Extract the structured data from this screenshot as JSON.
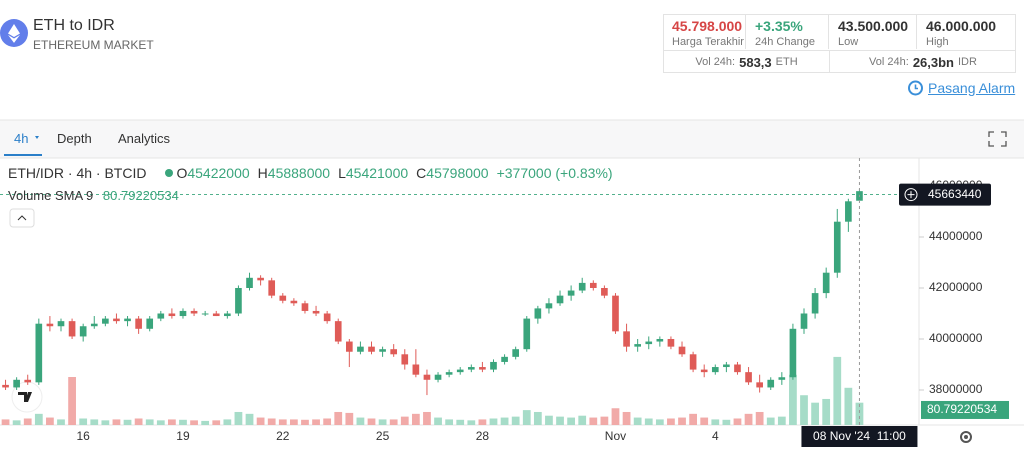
{
  "header": {
    "title": "ETH to IDR",
    "subtitle": "ETHEREUM MARKET"
  },
  "stats": [
    {
      "value": "45.798.000",
      "label": "Harga Terakhir"
    },
    {
      "value": "+3.35%",
      "label": "24h Change"
    },
    {
      "value": "43.500.000",
      "label": "Low"
    },
    {
      "value": "46.000.000",
      "label": "High"
    }
  ],
  "volumes": [
    {
      "label": "Vol 24h:",
      "value": "583,3",
      "unit": "ETH"
    },
    {
      "label": "Vol 24h:",
      "value": "26,3bn",
      "unit": "IDR"
    }
  ],
  "alarm": "Pasang Alarm",
  "tabs": [
    "4h",
    "Depth",
    "Analytics"
  ],
  "legend": {
    "symbol": "ETH/IDR · 4h · BTCID",
    "o": "O",
    "h": "H",
    "l": "L",
    "c": "C",
    "change": "+377000 (+0.83%)",
    "volume_label": "Volume SMA 9"
  },
  "chart_data": {
    "type": "candlestick",
    "up_color": "#3aa57c",
    "down_color": "#df5b57",
    "volume_up_color": "#a6dcc8",
    "volume_down_color": "#f1aaa8",
    "categories": [
      null,
      null,
      null,
      null,
      null,
      null,
      null,
      "16",
      null,
      null,
      null,
      null,
      null,
      null,
      null,
      null,
      "19",
      null,
      null,
      null,
      null,
      null,
      null,
      null,
      null,
      "22",
      null,
      null,
      null,
      null,
      null,
      null,
      null,
      null,
      "25",
      null,
      null,
      null,
      null,
      null,
      null,
      null,
      null,
      "28",
      null,
      null,
      null,
      null,
      null,
      null,
      null,
      null,
      null,
      null,
      null,
      "Nov",
      null,
      null,
      null,
      null,
      null,
      null,
      null,
      null,
      "4",
      null,
      null,
      null,
      null,
      null,
      null,
      null,
      null,
      null,
      null,
      null,
      null,
      null
    ],
    "open": [
      38200000,
      38100000,
      38400000,
      38300000,
      40600000,
      40500000,
      40700000,
      40100000,
      40500000,
      40600000,
      40800000,
      40700000,
      40800000,
      40400000,
      40800000,
      41000000,
      40900000,
      41100000,
      41000000,
      41000000,
      40900000,
      41000000,
      42000000,
      42400000,
      42300000,
      41700000,
      41500000,
      41400000,
      41100000,
      41000000,
      40700000,
      39900000,
      39500000,
      39700000,
      39500000,
      39600000,
      39400000,
      39000000,
      38600000,
      38400000,
      38600000,
      38700000,
      38800000,
      38900000,
      38800000,
      39100000,
      39300000,
      39600000,
      40800000,
      41200000,
      41400000,
      41700000,
      41900000,
      42200000,
      42000000,
      41700000,
      40300000,
      39700000,
      39800000,
      39900000,
      40000000,
      39700000,
      39400000,
      38800000,
      38700000,
      38900000,
      39000000,
      38700000,
      38300000,
      38100000,
      38400000,
      38500000,
      40400000,
      41000000,
      41800000,
      42600000,
      44600000,
      45422000
    ],
    "high": [
      38400000,
      38500000,
      38600000,
      40800000,
      40900000,
      40800000,
      40800000,
      40600000,
      40900000,
      40900000,
      41000000,
      40900000,
      40900000,
      40900000,
      41100000,
      41200000,
      41200000,
      41200000,
      41100000,
      41100000,
      41100000,
      42100000,
      42600000,
      42500000,
      42400000,
      41800000,
      41600000,
      41500000,
      41300000,
      41100000,
      40800000,
      40000000,
      39900000,
      39900000,
      39700000,
      39800000,
      39600000,
      39600000,
      38800000,
      38700000,
      38800000,
      38900000,
      39000000,
      39100000,
      39200000,
      39400000,
      39700000,
      40900000,
      41300000,
      41600000,
      41900000,
      42100000,
      42400000,
      42300000,
      42100000,
      41800000,
      40600000,
      40000000,
      40100000,
      40100000,
      40100000,
      39900000,
      39500000,
      39000000,
      39000000,
      39100000,
      39100000,
      38900000,
      38600000,
      38500000,
      38700000,
      40600000,
      41200000,
      42000000,
      42800000,
      45100000,
      45500000,
      45888000
    ],
    "low": [
      38000000,
      38000000,
      38200000,
      38200000,
      40300000,
      40300000,
      40000000,
      39900000,
      40400000,
      40500000,
      40600000,
      40500000,
      40200000,
      40300000,
      40700000,
      40800000,
      40800000,
      40900000,
      40900000,
      40900000,
      40800000,
      40900000,
      41900000,
      42100000,
      41600000,
      41400000,
      41300000,
      41000000,
      40900000,
      40600000,
      39800000,
      38900000,
      39400000,
      39400000,
      39300000,
      39300000,
      38800000,
      38500000,
      37800000,
      38300000,
      38500000,
      38600000,
      38700000,
      38700000,
      38700000,
      39000000,
      39200000,
      39500000,
      40600000,
      41000000,
      41300000,
      41500000,
      41800000,
      41900000,
      41600000,
      40200000,
      39500000,
      39500000,
      39600000,
      39700000,
      39600000,
      39300000,
      38700000,
      38500000,
      38600000,
      38700000,
      38600000,
      38200000,
      37900000,
      38000000,
      38200000,
      38400000,
      40200000,
      40800000,
      41600000,
      42400000,
      44200000,
      45421000
    ],
    "close": [
      38100000,
      38400000,
      38300000,
      40600000,
      40500000,
      40700000,
      40100000,
      40500000,
      40600000,
      40800000,
      40700000,
      40800000,
      40400000,
      40800000,
      41000000,
      40900000,
      41100000,
      41000000,
      41000000,
      40900000,
      41000000,
      42000000,
      42400000,
      42300000,
      41700000,
      41500000,
      41400000,
      41100000,
      41000000,
      40700000,
      39900000,
      39500000,
      39700000,
      39500000,
      39600000,
      39400000,
      39000000,
      38600000,
      38400000,
      38600000,
      38700000,
      38800000,
      38900000,
      38800000,
      39100000,
      39300000,
      39600000,
      40800000,
      41200000,
      41400000,
      41700000,
      41900000,
      42200000,
      42000000,
      41700000,
      40300000,
      39700000,
      39800000,
      39900000,
      40000000,
      39700000,
      39400000,
      38800000,
      38700000,
      38900000,
      39000000,
      38700000,
      38300000,
      38100000,
      38400000,
      38500000,
      40400000,
      41000000,
      41800000,
      42600000,
      44600000,
      45400000,
      45798000
    ],
    "volume": [
      30,
      25,
      35,
      60,
      40,
      30,
      258,
      35,
      30,
      25,
      30,
      28,
      35,
      30,
      25,
      30,
      28,
      25,
      22,
      25,
      30,
      70,
      60,
      40,
      35,
      30,
      30,
      28,
      30,
      35,
      70,
      65,
      40,
      35,
      30,
      30,
      45,
      60,
      70,
      40,
      30,
      28,
      25,
      30,
      35,
      40,
      45,
      80,
      70,
      50,
      45,
      40,
      50,
      40,
      45,
      90,
      70,
      40,
      35,
      30,
      35,
      40,
      60,
      40,
      30,
      28,
      35,
      60,
      70,
      40,
      45,
      270,
      160,
      120,
      140,
      366,
      200,
      120
    ],
    "volume_sma": 80.79220534,
    "vlim": [
      0,
      430
    ],
    "ylim": [
      36627000,
      47098000
    ],
    "yticks": [
      38000000,
      40000000,
      42000000,
      44000000,
      46000000
    ],
    "grid": false,
    "crosshair_price": 45663440,
    "crosshair_x_label": "08 Nov '24  11:00"
  }
}
